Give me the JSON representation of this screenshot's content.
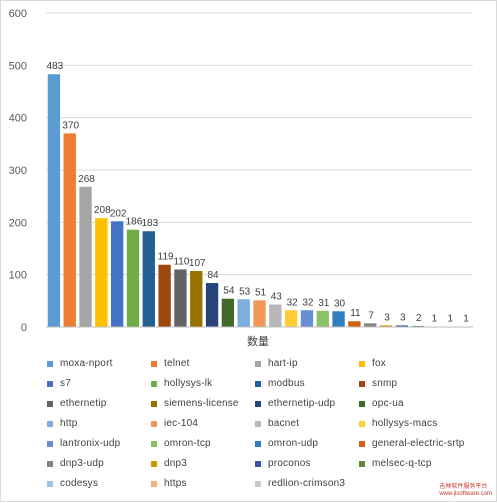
{
  "chart_data": {
    "type": "bar",
    "title": "",
    "xlabel": "数量",
    "ylabel": "",
    "ylim": [
      0,
      600
    ],
    "yticks": [
      0,
      100,
      200,
      300,
      400,
      500,
      600
    ],
    "grid": true,
    "legend_position": "bottom",
    "data_labels": true,
    "series": [
      {
        "name": "moxa-nport",
        "value": 483,
        "color": "#5B9BD5"
      },
      {
        "name": "telnet",
        "value": 370,
        "color": "#ED7D31"
      },
      {
        "name": "hart-ip",
        "value": 268,
        "color": "#A5A5A5"
      },
      {
        "name": "fox",
        "value": 208,
        "color": "#FFC000"
      },
      {
        "name": "s7",
        "value": 202,
        "color": "#4472C4"
      },
      {
        "name": "hollysys-lk",
        "value": 186,
        "color": "#70AD47"
      },
      {
        "name": "modbus",
        "value": 183,
        "color": "#255E91"
      },
      {
        "name": "snmp",
        "value": 119,
        "color": "#9E480E"
      },
      {
        "name": "ethernetip",
        "value": 110,
        "color": "#636363"
      },
      {
        "name": "siemens-license",
        "value": 107,
        "color": "#997300"
      },
      {
        "name": "ethernetip-udp",
        "value": 84,
        "color": "#264478"
      },
      {
        "name": "opc-ua",
        "value": 54,
        "color": "#43682B"
      },
      {
        "name": "http",
        "value": 53,
        "color": "#7CAFDD"
      },
      {
        "name": "iec-104",
        "value": 51,
        "color": "#F1975A"
      },
      {
        "name": "bacnet",
        "value": 43,
        "color": "#B7B7B7"
      },
      {
        "name": "hollysys-macs",
        "value": 32,
        "color": "#FFCD33"
      },
      {
        "name": "lantronix-udp",
        "value": 32,
        "color": "#698ED0"
      },
      {
        "name": "omron-tcp",
        "value": 31,
        "color": "#8CC168"
      },
      {
        "name": "omron-udp",
        "value": 30,
        "color": "#327DC2"
      },
      {
        "name": "general-electric-srtp",
        "value": 11,
        "color": "#D26012"
      },
      {
        "name": "dnp3-udp",
        "value": 7,
        "color": "#848484"
      },
      {
        "name": "dnp3",
        "value": 3,
        "color": "#CC9A00"
      },
      {
        "name": "proconos",
        "value": 3,
        "color": "#335AA1"
      },
      {
        "name": "melsec-q-tcp",
        "value": 2,
        "color": "#5A8A39"
      },
      {
        "name": "codesys",
        "value": 1,
        "color": "#9DC3E6"
      },
      {
        "name": "https",
        "value": 1,
        "color": "#F4B183"
      },
      {
        "name": "redlion-crimson3",
        "value": 1,
        "color": "#C9C9C9"
      }
    ]
  },
  "watermark": {
    "line1": "吉林软件服务平台",
    "line2": "www.jlsoftware.com"
  }
}
